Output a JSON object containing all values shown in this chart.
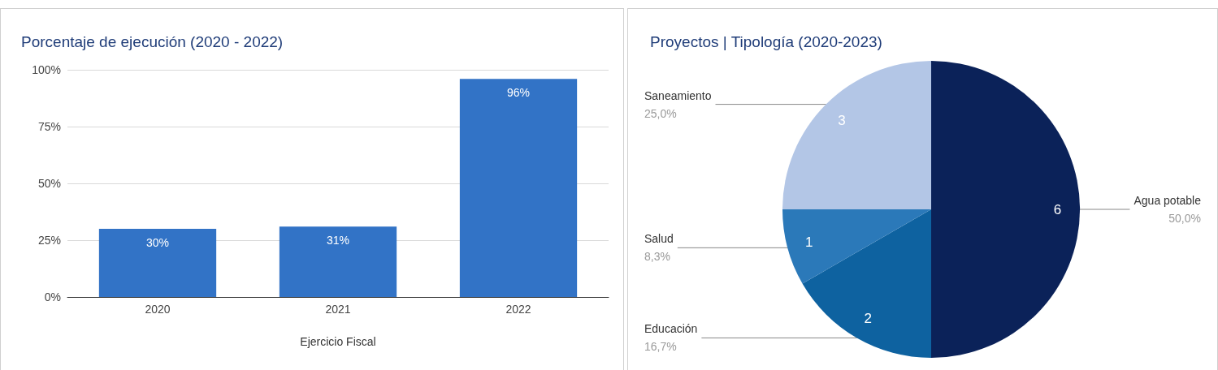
{
  "chart_data": [
    {
      "type": "bar",
      "title": "Porcentaje de ejecución (2020 - 2022)",
      "xlabel": "Ejercicio Fiscal",
      "categories": [
        "2020",
        "2021",
        "2022"
      ],
      "values": [
        30,
        31,
        96
      ],
      "value_labels": [
        "30%",
        "31%",
        "96%"
      ],
      "color": "#3273c6",
      "ylim": [
        0,
        100
      ],
      "yticks": [
        {
          "value": 0,
          "label": "0%"
        },
        {
          "value": 25,
          "label": "25%"
        },
        {
          "value": 50,
          "label": "50%"
        },
        {
          "value": 75,
          "label": "75%"
        },
        {
          "value": 100,
          "label": "100%"
        }
      ],
      "grid": "y",
      "legend": false
    },
    {
      "type": "pie",
      "title": "Proyectos | Tipología (2020-2023)",
      "categories": [
        "Agua potable",
        "Educación",
        "Salud",
        "Saneamiento"
      ],
      "values": [
        6,
        2,
        1,
        3
      ],
      "colors": [
        "#0b2259",
        "#0e62a0",
        "#2b79b9",
        "#b3c6e6"
      ],
      "annotations": [
        "50,0%",
        "16,7%",
        "8,3%",
        "25,0%"
      ],
      "data_labels": true,
      "legend": false
    }
  ]
}
